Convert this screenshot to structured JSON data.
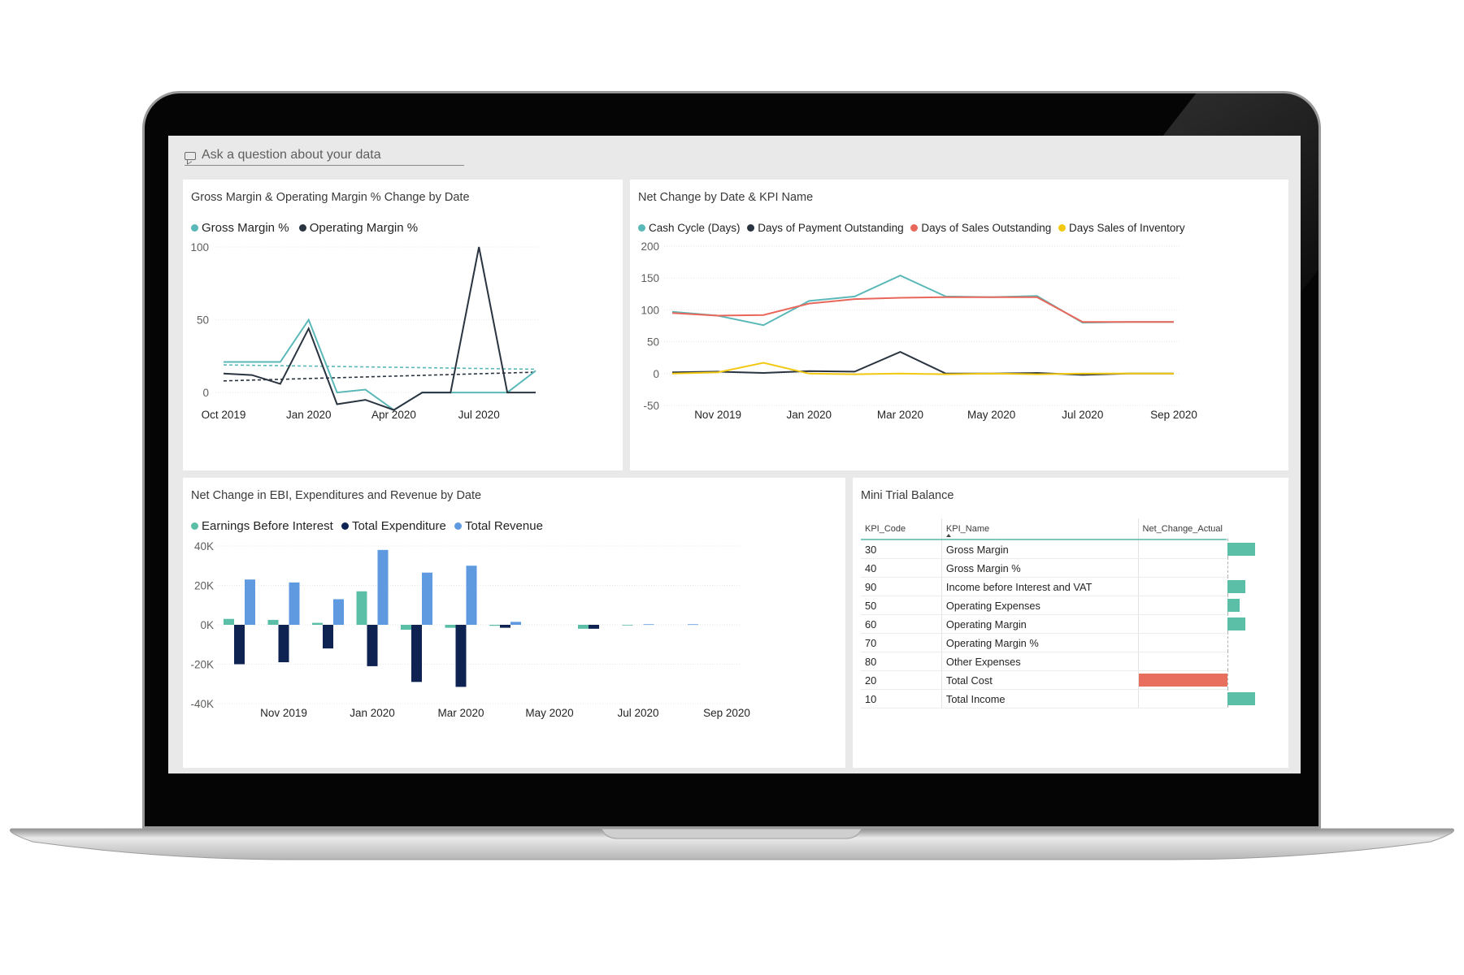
{
  "qa": {
    "placeholder": "Ask a question about your data",
    "icon": "chat-icon"
  },
  "colors": {
    "gross_margin": "#5bb8b8",
    "operating_margin": "#2a3440",
    "cash_cycle": "#5bb8b8",
    "dpo": "#2a3440",
    "dso": "#e8665a",
    "dsi": "#f2c811",
    "ebi": "#5bbfa8",
    "expenditure": "#0e2352",
    "revenue": "#5f9ae0",
    "bar_positive": "#5bbfa8",
    "bar_negative": "#e86e5e"
  },
  "charts": {
    "gm": {
      "title": "Gross Margin & Operating Margin % Change by Date"
    },
    "kpi": {
      "title": "Net Change by Date & KPI Name"
    },
    "ebi": {
      "title": "Net Change in EBI, Expenditures and Revenue by Date"
    }
  },
  "chart_data": [
    {
      "type": "line",
      "title": "Gross Margin & Operating Margin % Change by Date",
      "x": [
        "Oct 2019",
        "Nov 2019",
        "Dec 2019",
        "Jan 2020",
        "Feb 2020",
        "Mar 2020",
        "Apr 2020",
        "May 2020",
        "Jun 2020",
        "Jul 2020",
        "Aug 2020",
        "Sep 2020"
      ],
      "x_ticks": [
        "Oct 2019",
        "Jan 2020",
        "Apr 2020",
        "Jul 2020"
      ],
      "y_ticks": [
        "100",
        "50",
        "0"
      ],
      "ylim": [
        -15,
        100
      ],
      "series": [
        {
          "name": "Gross Margin %",
          "values": [
            21,
            21,
            21,
            50,
            0,
            2,
            -12,
            0,
            0,
            0,
            0,
            15
          ]
        },
        {
          "name": "Operating Margin %",
          "values": [
            13,
            12,
            6,
            44,
            -8,
            -5,
            -12,
            0,
            0,
            100,
            0,
            0
          ]
        }
      ],
      "trend_lines": [
        {
          "series": "Gross Margin %",
          "start": 19,
          "end": 16
        },
        {
          "series": "Operating Margin %",
          "start": 8,
          "end": 14
        }
      ]
    },
    {
      "type": "line",
      "title": "Net Change by Date & KPI Name",
      "x": [
        "Oct 2019",
        "Nov 2019",
        "Dec 2019",
        "Jan 2020",
        "Feb 2020",
        "Mar 2020",
        "Apr 2020",
        "May 2020",
        "Jun 2020",
        "Jul 2020",
        "Aug 2020",
        "Sep 2020"
      ],
      "x_ticks": [
        "Nov 2019",
        "Jan 2020",
        "Mar 2020",
        "May 2020",
        "Jul 2020",
        "Sep 2020"
      ],
      "y_ticks": [
        "200",
        "150",
        "100",
        "50",
        "0",
        "-50"
      ],
      "ylim": [
        -50,
        200
      ],
      "series": [
        {
          "name": "Cash Cycle (Days)",
          "values": [
            97,
            91,
            76,
            114,
            121,
            154,
            121,
            120,
            122,
            80,
            81,
            81
          ]
        },
        {
          "name": "Days of Payment Outstanding",
          "values": [
            2,
            3,
            1,
            4,
            3,
            34,
            0,
            0,
            1,
            -2,
            0,
            0
          ]
        },
        {
          "name": "Days of Sales Outstanding",
          "values": [
            95,
            91,
            92,
            110,
            117,
            119,
            120,
            120,
            120,
            81,
            81,
            81
          ]
        },
        {
          "name": "Days Sales of Inventory",
          "values": [
            0,
            2,
            17,
            0,
            -1,
            0,
            -1,
            0,
            -1,
            0,
            0,
            0
          ]
        }
      ]
    },
    {
      "type": "bar",
      "title": "Net Change in EBI, Expenditures and Revenue by Date",
      "categories": [
        "Oct 2019",
        "Nov 2019",
        "Dec 2019",
        "Jan 2020",
        "Feb 2020",
        "Mar 2020",
        "Apr 2020",
        "May 2020",
        "Jun 2020",
        "Jul 2020",
        "Aug 2020",
        "Sep 2020"
      ],
      "x_ticks": [
        "Nov 2019",
        "Jan 2020",
        "Mar 2020",
        "May 2020",
        "Jul 2020",
        "Sep 2020"
      ],
      "y_ticks": [
        "40K",
        "20K",
        "0K",
        "-20K",
        "-40K"
      ],
      "ylim": [
        -40000,
        40000
      ],
      "series": [
        {
          "name": "Earnings Before Interest",
          "values": [
            3000,
            2500,
            1000,
            17000,
            -2500,
            -1500,
            -500,
            0,
            -2000,
            -300,
            0,
            0
          ]
        },
        {
          "name": "Total Expenditure",
          "values": [
            -20000,
            -19000,
            -12000,
            -21000,
            -29000,
            -31500,
            -1500,
            0,
            -2000,
            0,
            0,
            0
          ]
        },
        {
          "name": "Total Revenue",
          "values": [
            23000,
            21500,
            13000,
            38000,
            26500,
            30000,
            1500,
            0,
            0,
            300,
            300,
            0
          ]
        }
      ]
    }
  ],
  "trial_balance": {
    "title": "Mini Trial Balance",
    "headers": {
      "code": "KPI_Code",
      "name": "KPI_Name",
      "value": "Net_Change_Actual"
    },
    "rows": [
      {
        "code": "30",
        "name": "Gross Margin",
        "value_fraction": 0.32
      },
      {
        "code": "40",
        "name": "Gross Margin %",
        "value_fraction": 0.0
      },
      {
        "code": "90",
        "name": "Income before Interest and VAT",
        "value_fraction": 0.21
      },
      {
        "code": "50",
        "name": "Operating Expenses",
        "value_fraction": 0.14
      },
      {
        "code": "60",
        "name": "Operating Margin",
        "value_fraction": 0.21
      },
      {
        "code": "70",
        "name": "Operating Margin %",
        "value_fraction": 0.0
      },
      {
        "code": "80",
        "name": "Other Expenses",
        "value_fraction": 0.0
      },
      {
        "code": "20",
        "name": "Total Cost",
        "value_fraction": -1.0
      },
      {
        "code": "10",
        "name": "Total Income",
        "value_fraction": 0.32
      }
    ]
  }
}
